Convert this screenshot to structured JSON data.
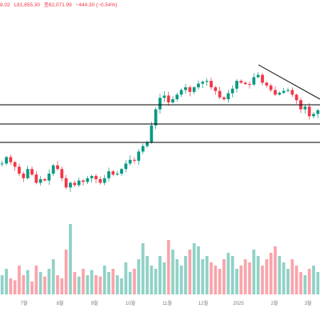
{
  "header": {
    "open_partial": "8.02",
    "low": "L81,855.30",
    "close": "종82,071.99",
    "change": "−444.30 (−0.54%)"
  },
  "colors": {
    "up": "#089981",
    "down": "#f23645",
    "line": "#000000",
    "axis_text": "#787b86",
    "grid": "#f0f3fa"
  },
  "chart_data": {
    "type": "candlestick",
    "x_tick_labels": [
      "7월",
      "8월",
      "9월",
      "10월",
      "11월",
      "12월",
      "2025",
      "2월",
      "3월"
    ],
    "horizontal_levels_note": "three horizontal support/resistance lines and one descending trendline",
    "price_series": [
      82,
      96,
      85,
      75,
      60,
      50,
      70,
      58,
      40,
      48,
      45,
      60,
      78,
      70,
      50,
      30,
      40,
      35,
      45,
      42,
      50,
      55,
      48,
      40,
      50,
      65,
      58,
      60,
      70,
      82,
      90,
      88,
      108,
      120,
      128,
      165,
      200,
      225,
      230,
      215,
      222,
      232,
      242,
      248,
      238,
      248,
      256,
      260,
      262,
      248,
      240,
      226,
      222,
      235,
      245,
      262,
      258,
      255,
      254,
      270,
      275,
      258,
      252,
      242,
      232,
      236,
      240,
      242,
      232,
      220,
      200,
      206,
      185,
      190,
      198
    ],
    "volume_series": [
      30,
      40,
      25,
      22,
      45,
      30,
      38,
      20,
      45,
      35,
      28,
      40,
      55,
      30,
      25,
      70,
      110,
      35,
      28,
      40,
      30,
      38,
      30,
      28,
      45,
      35,
      40,
      30,
      25,
      50,
      35,
      40,
      55,
      80,
      60,
      45,
      40,
      60,
      50,
      85,
      70,
      55,
      45,
      60,
      70,
      80,
      75,
      55,
      60,
      50,
      45,
      40,
      55,
      65,
      60,
      40,
      45,
      55,
      50,
      70,
      60,
      45,
      55,
      65,
      75,
      60,
      50,
      40,
      55,
      45,
      35,
      30,
      40,
      45,
      35
    ]
  }
}
